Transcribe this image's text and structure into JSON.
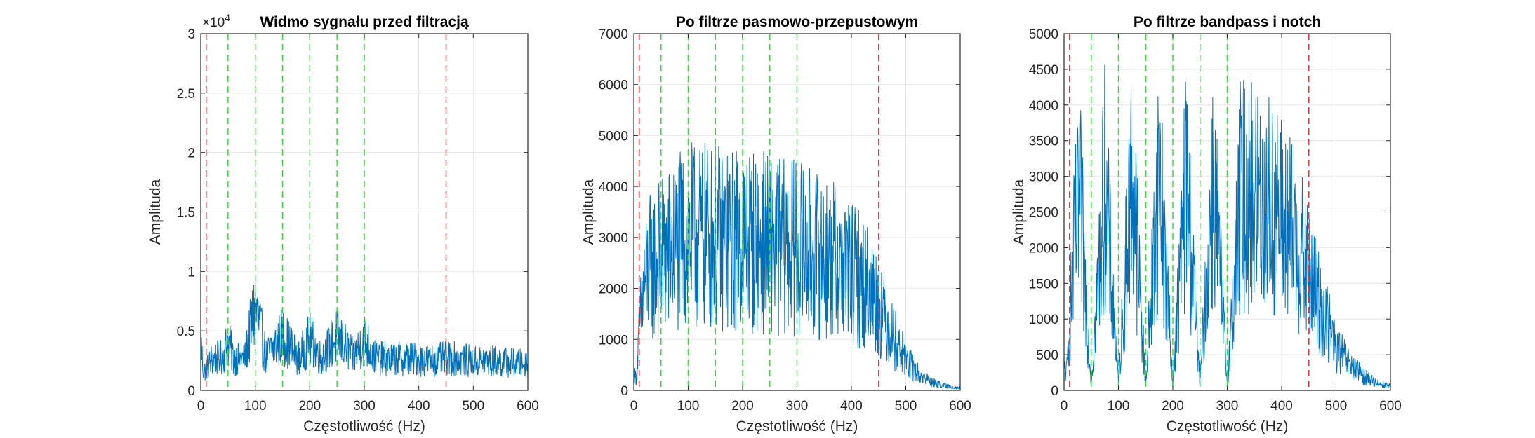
{
  "chart_data": [
    {
      "type": "line",
      "title": "Widmo sygnału przed filtracją",
      "xlabel": "Częstotliwość (Hz)",
      "ylabel": "Amplituda",
      "xlim": [
        0,
        600
      ],
      "ylim": [
        0,
        30000
      ],
      "x_ticks": [
        "0",
        "100",
        "200",
        "300",
        "400",
        "500",
        "600"
      ],
      "y_ticks": [
        "0",
        "0.5",
        "1",
        "1.5",
        "2",
        "2.5",
        "3"
      ],
      "y_exponent_base": "×10",
      "y_exponent_power": "4",
      "grid": true,
      "red_lines_x": [
        10,
        450
      ],
      "green_lines_x": [
        50,
        100,
        150,
        200,
        250,
        300
      ],
      "series": [
        {
          "color": "#0072BD",
          "x": [
            0,
            5,
            10,
            20,
            40,
            50,
            60,
            80,
            100,
            120,
            150,
            180,
            200,
            220,
            250,
            280,
            300,
            320,
            350,
            380,
            400,
            420,
            450,
            480,
            500,
            520,
            550,
            580,
            600
          ],
          "y": [
            4200,
            1500,
            1800,
            2600,
            2800,
            4100,
            2700,
            2600,
            7000,
            2800,
            4600,
            2700,
            4300,
            2700,
            4500,
            2800,
            4300,
            2700,
            2600,
            2700,
            2600,
            2500,
            2700,
            2600,
            2400,
            2500,
            2400,
            2300,
            2200
          ]
        }
      ]
    },
    {
      "type": "line",
      "title": "Po filtrze pasmowo-przepustowym",
      "xlabel": "Częstotliwość (Hz)",
      "ylabel": "Amplituda",
      "xlim": [
        0,
        600
      ],
      "ylim": [
        0,
        7000
      ],
      "x_ticks": [
        "0",
        "100",
        "200",
        "300",
        "400",
        "500",
        "600"
      ],
      "y_ticks": [
        "0",
        "1000",
        "2000",
        "3000",
        "4000",
        "5000",
        "6000",
        "7000"
      ],
      "grid": true,
      "red_lines_x": [
        10,
        450
      ],
      "green_lines_x": [
        50,
        100,
        150,
        200,
        250,
        300
      ],
      "series": [
        {
          "color": "#0072BD",
          "x": [
            0,
            5,
            10,
            15,
            20,
            30,
            50,
            75,
            100,
            125,
            150,
            175,
            200,
            225,
            250,
            275,
            300,
            325,
            350,
            375,
            400,
            425,
            450,
            475,
            500,
            525,
            550,
            575,
            600
          ],
          "y": [
            300,
            250,
            1100,
            1700,
            2100,
            2400,
            2600,
            2800,
            3000,
            3000,
            3000,
            2900,
            3000,
            2900,
            2900,
            2800,
            2800,
            2700,
            2600,
            2500,
            2300,
            2100,
            1700,
            1100,
            600,
            300,
            150,
            80,
            50
          ]
        }
      ]
    },
    {
      "type": "line",
      "title": "Po filtrze bandpass i notch",
      "xlabel": "Częstotliwość (Hz)",
      "ylabel": "Amplituda",
      "xlim": [
        0,
        600
      ],
      "ylim": [
        0,
        5000
      ],
      "x_ticks": [
        "0",
        "100",
        "200",
        "300",
        "400",
        "500",
        "600"
      ],
      "y_ticks": [
        "0",
        "500",
        "1000",
        "1500",
        "2000",
        "2500",
        "3000",
        "3500",
        "4000",
        "4500",
        "5000"
      ],
      "grid": true,
      "red_lines_x": [
        10,
        450
      ],
      "green_lines_x": [
        50,
        100,
        150,
        200,
        250,
        300
      ],
      "series": [
        {
          "color": "#0072BD",
          "x": [
            0,
            5,
            10,
            15,
            20,
            30,
            50,
            75,
            100,
            125,
            150,
            175,
            200,
            225,
            250,
            275,
            300,
            325,
            350,
            375,
            400,
            425,
            450,
            475,
            500,
            525,
            550,
            575,
            600
          ],
          "y": [
            300,
            250,
            900,
            1500,
            2100,
            2500,
            100,
            2900,
            100,
            3100,
            100,
            3100,
            100,
            3000,
            100,
            3000,
            100,
            2800,
            2700,
            2600,
            2400,
            2100,
            1600,
            1100,
            600,
            350,
            200,
            100,
            60
          ]
        }
      ]
    }
  ]
}
